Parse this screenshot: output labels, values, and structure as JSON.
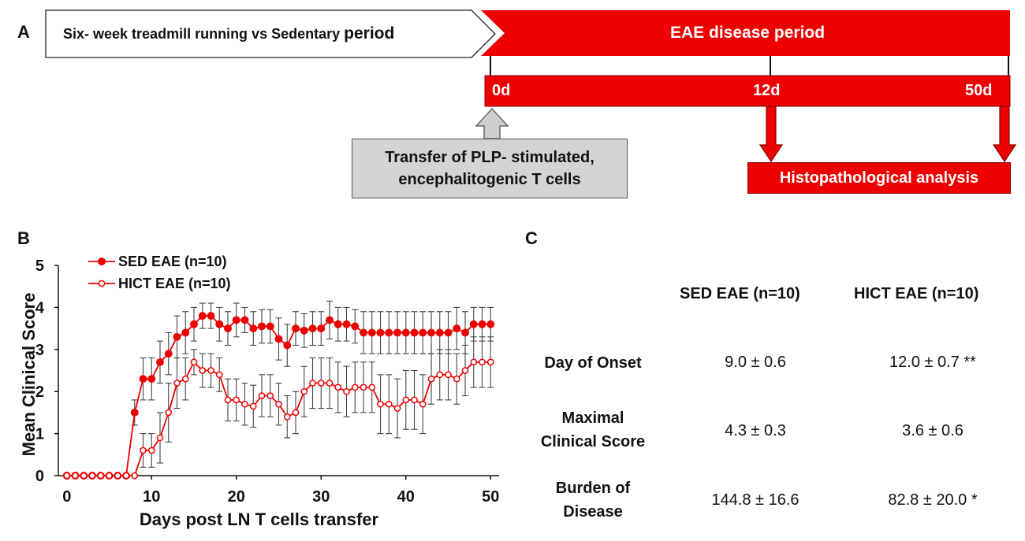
{
  "panel_a": {
    "letter": "A",
    "exercise_label_main": "Six- week treadmill running vs Sedentary",
    "exercise_label_tail": "period",
    "eae_label": "EAE disease period",
    "day_labels": [
      "0d",
      "12d",
      "50d"
    ],
    "transfer_line1": "Transfer of PLP- stimulated,",
    "transfer_line2": "encephalitogenic T cells",
    "histo_label": "Histopathological analysis",
    "colors": {
      "red": "#ee0000",
      "gray_box": "#d4d4d4",
      "dark_red": "#880000"
    }
  },
  "panel_b": {
    "letter": "B"
  },
  "panel_c": {
    "letter": "C",
    "columns": [
      "SED EAE  (n=10)",
      "HICT EAE  (n=10)"
    ],
    "rows": [
      {
        "label_lines": [
          "Day of Onset"
        ],
        "sed": "9.0 ± 0.6",
        "hict": "12.0 ± 0.7 **"
      },
      {
        "label_lines": [
          "Maximal",
          "Clinical Score"
        ],
        "sed": "4.3 ± 0.3",
        "hict": "3.6 ± 0.6"
      },
      {
        "label_lines": [
          "Burden of",
          "Disease"
        ],
        "sed": "144.8 ± 16.6",
        "hict": "82.8 ± 20.0 *"
      }
    ]
  },
  "chart_data": {
    "type": "line",
    "title": "",
    "xlabel": "Days post LN T cells transfer",
    "ylabel": "Mean Clinical Score",
    "xlim": [
      -1,
      51
    ],
    "ylim": [
      0,
      5
    ],
    "xticks": [
      0,
      10,
      20,
      30,
      40,
      50
    ],
    "yticks": [
      0,
      1,
      2,
      3,
      4,
      5
    ],
    "x": [
      0,
      1,
      2,
      3,
      4,
      5,
      6,
      7,
      8,
      9,
      10,
      11,
      12,
      13,
      14,
      15,
      16,
      17,
      18,
      19,
      20,
      21,
      22,
      23,
      24,
      25,
      26,
      27,
      28,
      29,
      30,
      31,
      32,
      33,
      34,
      35,
      36,
      37,
      38,
      39,
      40,
      41,
      42,
      43,
      44,
      45,
      46,
      47,
      48,
      49,
      50
    ],
    "legend_position": "top-left",
    "series": [
      {
        "name": "SED EAE (n=10)",
        "marker": "filled-circle",
        "color": "#ee0000",
        "values": [
          0,
          0,
          0,
          0,
          0,
          0,
          0,
          0,
          1.5,
          2.3,
          2.3,
          2.7,
          2.9,
          3.3,
          3.4,
          3.6,
          3.8,
          3.8,
          3.6,
          3.5,
          3.7,
          3.7,
          3.5,
          3.55,
          3.55,
          3.25,
          3.1,
          3.5,
          3.45,
          3.5,
          3.5,
          3.7,
          3.6,
          3.6,
          3.55,
          3.4,
          3.4,
          3.4,
          3.4,
          3.4,
          3.4,
          3.4,
          3.4,
          3.4,
          3.4,
          3.4,
          3.5,
          3.4,
          3.6,
          3.6,
          3.6
        ],
        "errors": [
          0,
          0,
          0,
          0,
          0,
          0,
          0,
          0,
          0.3,
          0.5,
          0.5,
          0.5,
          0.5,
          0.5,
          0.5,
          0.4,
          0.3,
          0.3,
          0.4,
          0.4,
          0.4,
          0.3,
          0.4,
          0.4,
          0.4,
          0.5,
          0.5,
          0.4,
          0.4,
          0.4,
          0.4,
          0.45,
          0.4,
          0.4,
          0.4,
          0.5,
          0.5,
          0.5,
          0.5,
          0.5,
          0.5,
          0.5,
          0.5,
          0.5,
          0.5,
          0.5,
          0.5,
          0.5,
          0.4,
          0.4,
          0.4
        ]
      },
      {
        "name": "HICT EAE (n=10)",
        "marker": "open-circle",
        "color": "#ee0000",
        "values": [
          0,
          0,
          0,
          0,
          0,
          0,
          0,
          0,
          0,
          0.6,
          0.6,
          0.9,
          1.5,
          2.2,
          2.3,
          2.7,
          2.5,
          2.5,
          2.4,
          1.8,
          1.8,
          1.7,
          1.65,
          1.9,
          1.9,
          1.7,
          1.4,
          1.5,
          2.0,
          2.2,
          2.2,
          2.2,
          2.1,
          2.0,
          2.1,
          2.1,
          2.1,
          1.7,
          1.7,
          1.6,
          1.8,
          1.8,
          1.7,
          2.3,
          2.4,
          2.4,
          2.3,
          2.5,
          2.7,
          2.7,
          2.7
        ],
        "errors": [
          0,
          0,
          0,
          0,
          0,
          0,
          0,
          0,
          0,
          0.4,
          0.4,
          0.6,
          0.7,
          0.6,
          0.5,
          0.3,
          0.4,
          0.4,
          0.4,
          0.5,
          0.5,
          0.5,
          0.5,
          0.5,
          0.5,
          0.5,
          0.5,
          0.5,
          0.6,
          0.6,
          0.6,
          0.6,
          0.6,
          0.6,
          0.6,
          0.6,
          0.6,
          0.7,
          0.7,
          0.7,
          0.7,
          0.7,
          0.7,
          0.6,
          0.6,
          0.6,
          0.6,
          0.6,
          0.6,
          0.6,
          0.6
        ]
      }
    ]
  }
}
